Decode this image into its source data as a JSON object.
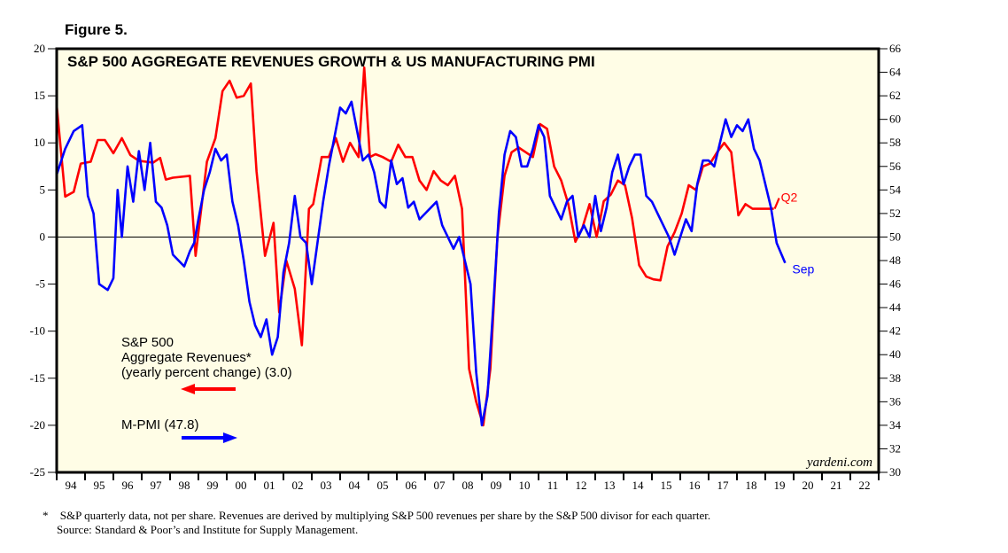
{
  "figure_label": "Figure 5.",
  "footnote": {
    "marker": "*",
    "line1": "S&P quarterly data, not per share. Revenues are derived by multiplying S&P 500 revenues per share by the S&P 500 divisor for each quarter.",
    "line2": "Source: Standard & Poor’s and Institute for Supply Management."
  },
  "chart_data": {
    "type": "line",
    "title": "S&P 500 AGGREGATE REVENUES GROWTH & US MANUFACTURING PMI",
    "watermark": "yardeni.com",
    "background_color": "#fffde6",
    "grid": false,
    "zero_line": true,
    "x_axis": {
      "range": [
        1994,
        2023
      ],
      "tick_labels": [
        "94",
        "95",
        "96",
        "97",
        "98",
        "99",
        "00",
        "01",
        "02",
        "03",
        "04",
        "05",
        "06",
        "07",
        "08",
        "09",
        "10",
        "11",
        "12",
        "13",
        "14",
        "15",
        "16",
        "17",
        "18",
        "19",
        "20",
        "21",
        "22"
      ]
    },
    "y_left": {
      "range": [
        -25,
        20
      ],
      "ticks": [
        20,
        15,
        10,
        5,
        0,
        -5,
        -10,
        -15,
        -20,
        -25
      ],
      "tick_labels": [
        "20",
        "15",
        "10",
        "5",
        "0",
        "-5",
        "-10",
        "-15",
        "-20",
        "-25"
      ]
    },
    "y_right": {
      "range": [
        30,
        66
      ],
      "ticks": [
        66,
        64,
        62,
        60,
        58,
        56,
        54,
        52,
        50,
        48,
        46,
        44,
        42,
        40,
        38,
        36,
        34,
        32,
        30
      ],
      "tick_labels": [
        "66",
        "64",
        "62",
        "60",
        "58",
        "56",
        "54",
        "52",
        "50",
        "48",
        "46",
        "44",
        "42",
        "40",
        "38",
        "36",
        "34",
        "32",
        "30"
      ]
    },
    "legend": [
      {
        "lines": [
          "S&P 500",
          "Aggregate Revenues*",
          "(yearly percent change) (3.0)"
        ],
        "color": "#ff0000",
        "arrow": "left",
        "axis": "left"
      },
      {
        "lines": [
          "M-PMI (47.8)"
        ],
        "color": "#0000ff",
        "arrow": "right",
        "axis": "right"
      }
    ],
    "series": [
      {
        "name": "S&P 500 Aggregate Revenues (yearly percent change)",
        "axis": "left",
        "color": "#ff0000",
        "end_label": "Q2",
        "x": [
          1994.0,
          1994.3,
          1994.6,
          1994.85,
          1995.2,
          1995.45,
          1995.7,
          1996.0,
          1996.3,
          1996.6,
          1996.9,
          1997.4,
          1997.65,
          1997.85,
          1998.1,
          1998.7,
          1998.9,
          1999.1,
          1999.3,
          1999.6,
          1999.85,
          2000.1,
          2000.35,
          2000.6,
          2000.85,
          2001.05,
          2001.35,
          2001.65,
          2001.85,
          2002.1,
          2002.4,
          2002.65,
          2002.9,
          2003.05,
          2003.35,
          2003.6,
          2003.85,
          2004.1,
          2004.35,
          2004.65,
          2004.85,
          2005.05,
          2005.25,
          2005.5,
          2005.8,
          2006.05,
          2006.3,
          2006.55,
          2006.8,
          2007.05,
          2007.3,
          2007.55,
          2007.8,
          2008.05,
          2008.3,
          2008.55,
          2008.8,
          2009.05,
          2009.3,
          2009.55,
          2009.8,
          2010.05,
          2010.3,
          2010.55,
          2010.8,
          2011.05,
          2011.3,
          2011.55,
          2011.8,
          2012.05,
          2012.3,
          2012.55,
          2012.8,
          2013.05,
          2013.3,
          2013.55,
          2013.8,
          2014.05,
          2014.3,
          2014.55,
          2014.8,
          2015.05,
          2015.3,
          2015.55,
          2015.8,
          2016.05,
          2016.3,
          2016.55,
          2016.8,
          2017.05,
          2017.3,
          2017.55,
          2017.8,
          2018.05,
          2018.3,
          2018.55,
          2018.8,
          2019.05,
          2019.3
        ],
        "values": [
          14.0,
          4.3,
          4.8,
          7.8,
          8.0,
          10.3,
          10.3,
          8.9,
          10.5,
          8.7,
          8.1,
          7.9,
          8.4,
          6.1,
          6.3,
          6.5,
          -2.0,
          3.0,
          8.0,
          10.5,
          15.5,
          16.6,
          14.8,
          15.0,
          16.3,
          7.0,
          -2.0,
          1.5,
          -8.0,
          -2.5,
          -5.5,
          -11.5,
          3.0,
          3.5,
          8.5,
          8.5,
          10.5,
          8.0,
          10.0,
          8.5,
          18.0,
          8.5,
          8.8,
          8.5,
          8.0,
          9.8,
          8.5,
          8.5,
          6.0,
          5.0,
          7.0,
          6.0,
          5.5,
          6.5,
          3.0,
          -14.0,
          -17.5,
          -20.0,
          -14.0,
          0.0,
          6.5,
          9.0,
          9.5,
          9.0,
          8.5,
          12.0,
          11.5,
          7.5,
          6.0,
          3.5,
          -0.5,
          1.0,
          3.5,
          0.0,
          3.8,
          4.5,
          6.0,
          5.5,
          2.0,
          -3.0,
          -4.2,
          -4.5,
          -4.6,
          -1.0,
          0.5,
          2.5,
          5.5,
          5.0,
          7.5,
          7.8,
          9.0,
          10.0,
          9.0,
          2.3,
          3.5,
          3.0,
          3.0,
          3.0,
          3.0
        ],
        "last_value": 3.0
      },
      {
        "name": "M-PMI",
        "axis": "right",
        "color": "#0000ff",
        "end_label": "Sep",
        "x": [
          1994.0,
          1994.3,
          1994.6,
          1994.9,
          1995.1,
          1995.3,
          1995.5,
          1995.8,
          1996.0,
          1996.15,
          1996.3,
          1996.5,
          1996.7,
          1996.9,
          1997.1,
          1997.3,
          1997.5,
          1997.7,
          1997.9,
          1998.1,
          1998.3,
          1998.5,
          1998.7,
          1998.85,
          1999.0,
          1999.2,
          1999.4,
          1999.6,
          1999.8,
          2000.0,
          2000.2,
          2000.4,
          2000.6,
          2000.8,
          2001.0,
          2001.2,
          2001.4,
          2001.6,
          2001.8,
          2002.0,
          2002.2,
          2002.4,
          2002.6,
          2002.8,
          2003.0,
          2003.2,
          2003.4,
          2003.6,
          2003.8,
          2004.0,
          2004.2,
          2004.4,
          2004.6,
          2004.8,
          2005.0,
          2005.2,
          2005.4,
          2005.6,
          2005.8,
          2006.0,
          2006.2,
          2006.4,
          2006.6,
          2006.8,
          2007.0,
          2007.2,
          2007.4,
          2007.6,
          2007.8,
          2008.0,
          2008.2,
          2008.4,
          2008.6,
          2008.8,
          2009.0,
          2009.2,
          2009.4,
          2009.6,
          2009.8,
          2010.0,
          2010.2,
          2010.4,
          2010.6,
          2010.8,
          2011.0,
          2011.2,
          2011.4,
          2011.6,
          2011.8,
          2012.0,
          2012.2,
          2012.4,
          2012.6,
          2012.8,
          2013.0,
          2013.2,
          2013.4,
          2013.6,
          2013.8,
          2014.0,
          2014.2,
          2014.4,
          2014.6,
          2014.8,
          2015.0,
          2015.2,
          2015.4,
          2015.6,
          2015.8,
          2016.0,
          2016.2,
          2016.4,
          2016.6,
          2016.8,
          2017.0,
          2017.2,
          2017.4,
          2017.6,
          2017.8,
          2018.0,
          2018.2,
          2018.4,
          2018.6,
          2018.8,
          2019.0,
          2019.2,
          2019.4,
          2019.7
        ],
        "values": [
          55.3,
          57.5,
          59.0,
          59.5,
          53.5,
          52.0,
          46.0,
          45.5,
          46.5,
          54.0,
          50.0,
          56.0,
          53.0,
          57.3,
          54.0,
          58.0,
          53.0,
          52.5,
          51.0,
          48.5,
          48.0,
          47.5,
          48.8,
          49.5,
          51.5,
          54.0,
          55.5,
          57.5,
          56.5,
          57.0,
          53.0,
          51.0,
          48.0,
          44.5,
          42.5,
          41.5,
          43.0,
          40.0,
          41.5,
          47.0,
          49.5,
          53.5,
          50.0,
          49.5,
          46.0,
          49.5,
          53.0,
          56.0,
          58.5,
          61.0,
          60.5,
          61.5,
          59.0,
          56.5,
          57.0,
          55.5,
          53.0,
          52.5,
          56.5,
          54.5,
          55.0,
          52.5,
          53.0,
          51.5,
          52.0,
          52.5,
          53.0,
          51.0,
          50.0,
          49.0,
          50.0,
          48.0,
          46.0,
          38.5,
          34.0,
          36.5,
          44.0,
          52.0,
          57.0,
          59.0,
          58.5,
          56.0,
          56.0,
          57.5,
          59.5,
          58.5,
          53.5,
          52.5,
          51.5,
          53.0,
          53.5,
          50.0,
          51.0,
          50.0,
          53.5,
          50.5,
          52.5,
          55.5,
          57.0,
          54.5,
          56.0,
          57.0,
          57.0,
          53.5,
          53.0,
          52.0,
          51.0,
          50.0,
          48.5,
          50.0,
          51.5,
          50.5,
          54.5,
          56.5,
          56.5,
          56.0,
          58.0,
          60.0,
          58.5,
          59.5,
          59.0,
          60.0,
          57.5,
          56.5,
          54.5,
          52.5,
          49.5,
          47.8
        ],
        "last_value": 47.8
      }
    ]
  }
}
